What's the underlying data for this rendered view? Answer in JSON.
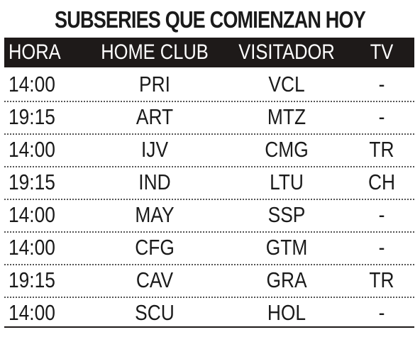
{
  "title": "SUBSERIES QUE COMIENZAN HOY",
  "headers": {
    "hora": "HORA",
    "home": "HOME CLUB",
    "visitor": "VISITADOR",
    "tv": "TV"
  },
  "rows": [
    {
      "hora": "14:00",
      "home": "PRI",
      "visitor": "VCL",
      "tv": "-"
    },
    {
      "hora": "19:15",
      "home": "ART",
      "visitor": "MTZ",
      "tv": "-"
    },
    {
      "hora": "14:00",
      "home": "IJV",
      "visitor": "CMG",
      "tv": "TR"
    },
    {
      "hora": "19:15",
      "home": "IND",
      "visitor": "LTU",
      "tv": "CH"
    },
    {
      "hora": "14:00",
      "home": "MAY",
      "visitor": "SSP",
      "tv": "-"
    },
    {
      "hora": "14:00",
      "home": "CFG",
      "visitor": "GTM",
      "tv": "-"
    },
    {
      "hora": "19:15",
      "home": "CAV",
      "visitor": "GRA",
      "tv": "TR"
    },
    {
      "hora": "14:00",
      "home": "SCU",
      "visitor": "HOL",
      "tv": "-"
    }
  ]
}
